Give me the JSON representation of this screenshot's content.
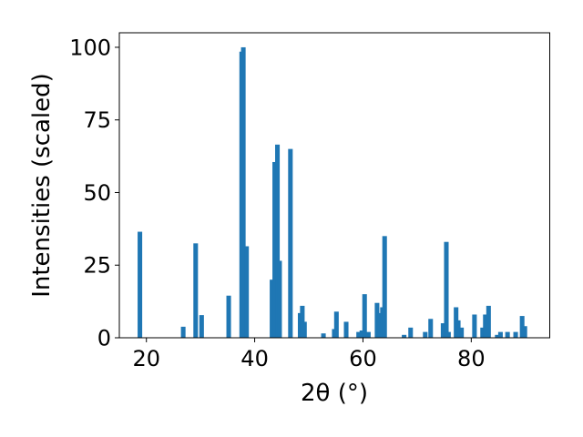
{
  "chart_data": {
    "type": "bar",
    "xlabel": "2θ (°)",
    "ylabel": "Intensities (scaled)",
    "xlim": [
      15,
      94.5
    ],
    "ylim": [
      0,
      105
    ],
    "xticks": [
      20,
      40,
      60,
      80
    ],
    "yticks": [
      0,
      25,
      50,
      75,
      100
    ],
    "grid": false,
    "bar_color": "#1f77b4",
    "bar_width": 0.85,
    "x": [
      18.8,
      26.8,
      29.1,
      30.2,
      35.2,
      37.6,
      37.9,
      38.5,
      43.2,
      43.7,
      44.2,
      44.6,
      46.6,
      48.4,
      48.8,
      49.2,
      52.7,
      54.7,
      55.1,
      56.9,
      59.2,
      59.8,
      60.3,
      61.0,
      62.6,
      63.1,
      63.6,
      64.0,
      67.6,
      68.8,
      71.5,
      72.5,
      74.8,
      75.4,
      75.8,
      77.2,
      77.6,
      78.2,
      80.6,
      82.1,
      82.6,
      83.2,
      84.8,
      85.4,
      86.7,
      88.2,
      89.4,
      89.9
    ],
    "values": [
      36.5,
      3.8,
      32.5,
      7.8,
      14.5,
      98.5,
      100,
      31.5,
      20,
      60.5,
      66.5,
      26.5,
      65,
      8.5,
      11,
      5.5,
      1.5,
      3,
      9,
      5.5,
      2,
      2.5,
      15,
      2,
      12,
      8.5,
      10.5,
      35,
      1,
      3.5,
      2,
      6.5,
      5,
      33,
      2,
      10.5,
      6,
      3.5,
      8,
      3.5,
      8,
      11,
      1,
      2,
      2,
      2,
      7.5,
      4
    ]
  }
}
